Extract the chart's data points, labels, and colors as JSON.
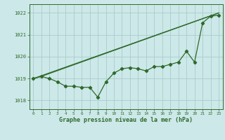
{
  "bg_color": "#cde8e8",
  "grid_color": "#aacccc",
  "line_color": "#2d6a2d",
  "title": "Graphe pression niveau de la mer (hPa)",
  "xlim": [
    -0.5,
    23.5
  ],
  "ylim": [
    1017.6,
    1022.4
  ],
  "yticks": [
    1018,
    1019,
    1020,
    1021,
    1022
  ],
  "xticks": [
    0,
    1,
    2,
    3,
    4,
    5,
    6,
    7,
    8,
    9,
    10,
    11,
    12,
    13,
    14,
    15,
    16,
    17,
    18,
    19,
    20,
    21,
    22,
    23
  ],
  "series1_x": [
    0,
    1,
    2,
    3,
    4,
    5,
    6,
    7,
    8,
    9,
    10,
    11,
    12,
    13,
    14,
    15,
    16,
    17,
    18,
    19,
    20,
    21,
    22,
    23
  ],
  "series1_y": [
    1019.0,
    1019.1,
    1019.0,
    1018.85,
    1018.65,
    1018.65,
    1018.6,
    1018.6,
    1018.15,
    1018.85,
    1019.25,
    1019.45,
    1019.5,
    1019.45,
    1019.35,
    1019.55,
    1019.55,
    1019.65,
    1019.75,
    1020.25,
    1019.75,
    1021.55,
    1021.85,
    1021.9
  ],
  "series2_x": [
    0,
    23
  ],
  "series2_y": [
    1019.0,
    1022.0
  ],
  "series3_x": [
    0,
    1,
    23
  ],
  "series3_y": [
    1019.0,
    1019.1,
    1022.0
  ]
}
